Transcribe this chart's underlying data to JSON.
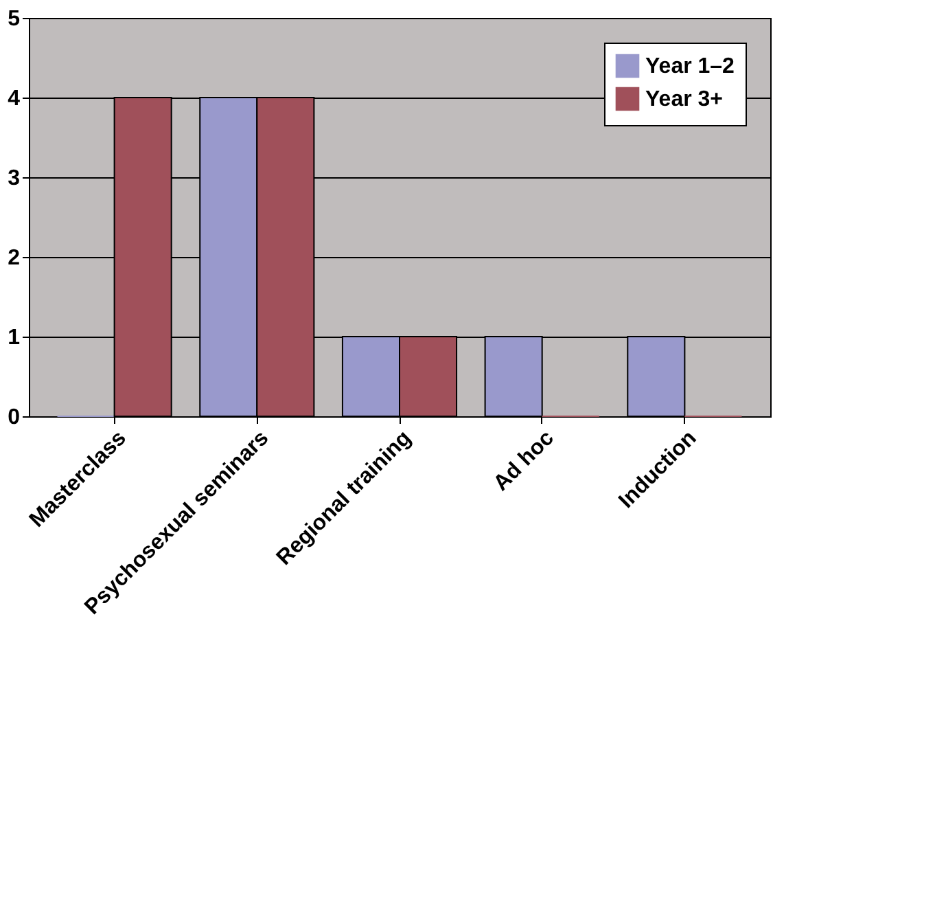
{
  "chart_data": {
    "type": "bar",
    "categories": [
      "Masterclass",
      "Psychosexual seminars",
      "Regional training",
      "Ad hoc",
      "Induction"
    ],
    "series": [
      {
        "name": "Year 1–2",
        "color": "#9999cc",
        "values": [
          0,
          4,
          1,
          1,
          1
        ]
      },
      {
        "name": "Year 3+",
        "color": "#a0505a",
        "values": [
          4,
          4,
          1,
          0,
          0
        ]
      }
    ],
    "ylim": [
      0,
      5
    ],
    "yticks": [
      0,
      1,
      2,
      3,
      4,
      5
    ],
    "grid": "y",
    "legend": "top right"
  }
}
